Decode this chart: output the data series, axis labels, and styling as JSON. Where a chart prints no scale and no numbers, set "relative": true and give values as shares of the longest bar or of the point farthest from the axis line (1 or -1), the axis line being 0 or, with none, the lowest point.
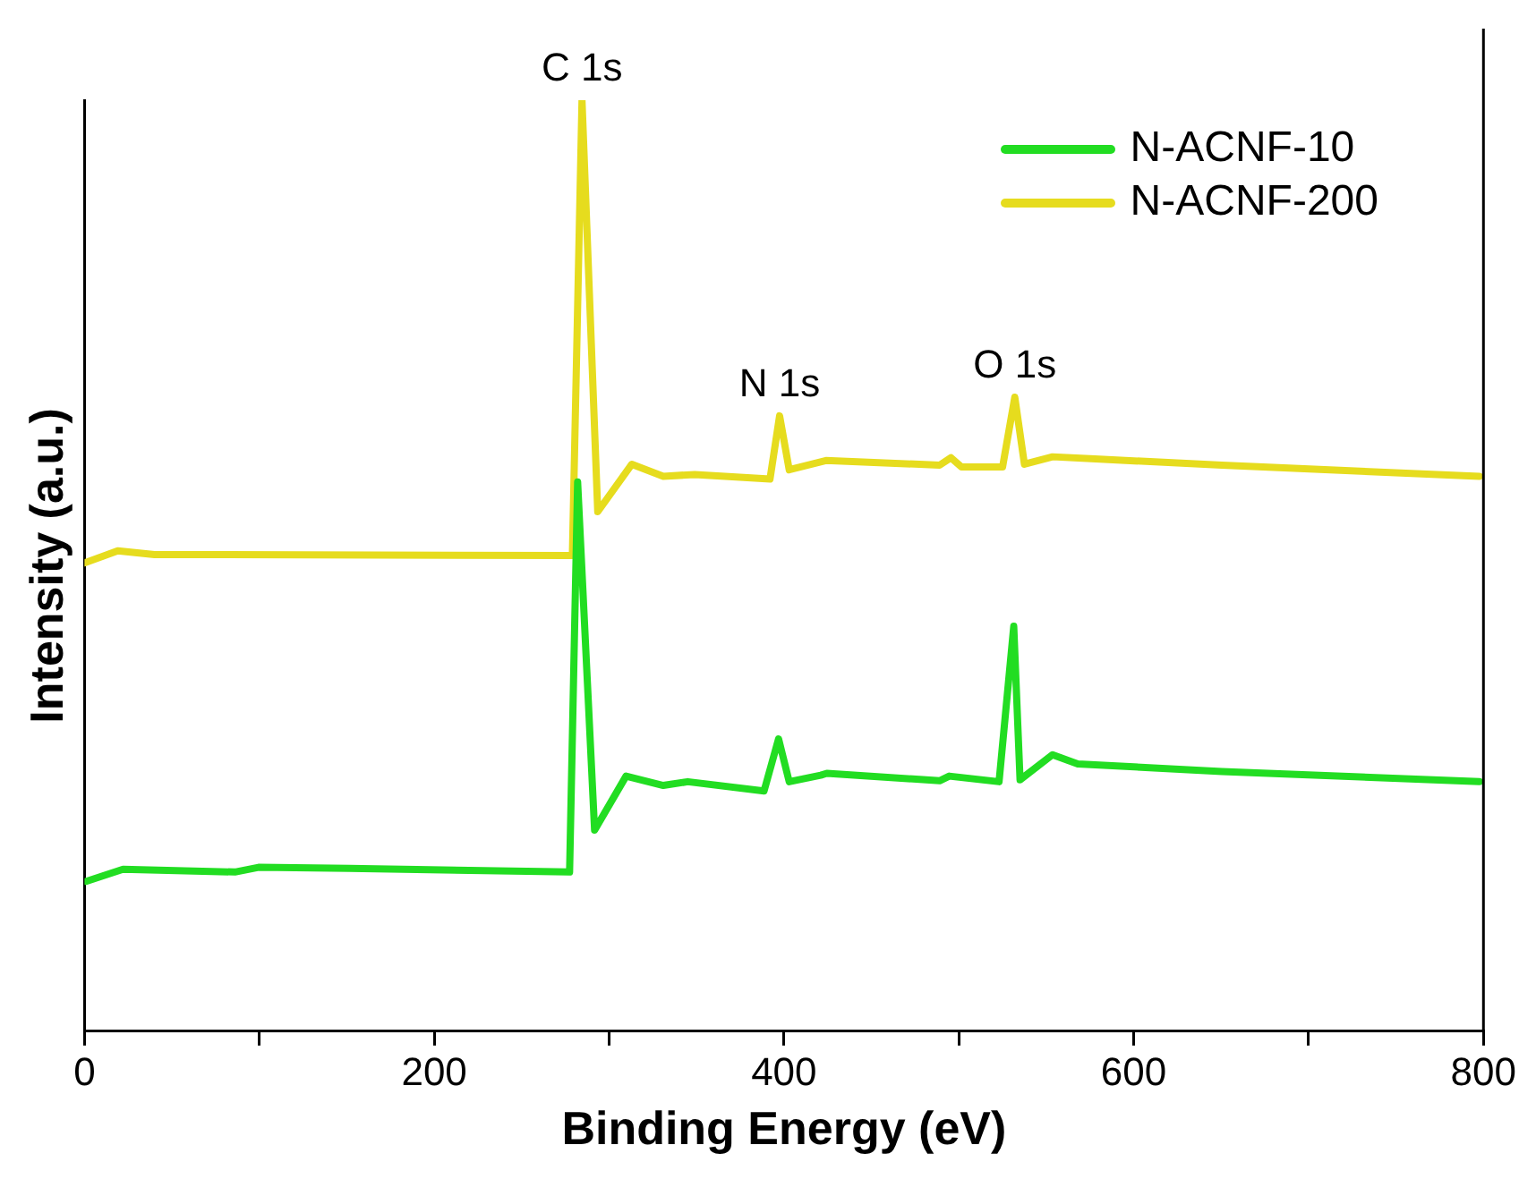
{
  "chart_data": {
    "type": "line",
    "relative": true,
    "xlabel": "Binding Energy (eV)",
    "ylabel": "Intensity (a.u.)",
    "xlim": [
      0,
      800
    ],
    "xticks": [
      0,
      {
        "value": 100,
        "label": null
      },
      200,
      {
        "value": 300,
        "label": null
      },
      400,
      {
        "value": 500,
        "label": null
      },
      600,
      {
        "value": 700,
        "label": null
      },
      800
    ],
    "legend": "top right",
    "grid": false,
    "marker": "none",
    "line_style": "solid",
    "annotations": [
      {
        "text": "C 1s",
        "x": 284.5,
        "y": 1.0
      },
      {
        "text": "N 1s",
        "x": 397.5,
        "y": 0.661
      },
      {
        "text": "O 1s",
        "x": 532,
        "y": 0.681
      }
    ],
    "series": [
      {
        "name": "N-ACNF-10",
        "color": "#22dd22",
        "x": [
          1,
          22,
          86,
          99.5,
          151.5,
          277.4,
          282,
          291.7,
          309.7,
          331,
          345,
          388.6,
          396.9,
          403,
          421,
          424.5,
          489,
          494.5,
          523,
          531.4,
          535,
          553.6,
          568,
          650.5,
          797.6
        ],
        "values": [
          0.161,
          0.174,
          0.171,
          0.176,
          0.175,
          0.171,
          0.59,
          0.216,
          0.274,
          0.264,
          0.268,
          0.258,
          0.314,
          0.268,
          0.275,
          0.277,
          0.269,
          0.274,
          0.268,
          0.435,
          0.27,
          0.297,
          0.287,
          0.279,
          0.268
        ]
      },
      {
        "name": "N-ACNF-200",
        "color": "#e6dc1e",
        "x": [
          0,
          19,
          40,
          279,
          284.5,
          293.5,
          313,
          331,
          349,
          392,
          397.5,
          403,
          424,
          489,
          495.5,
          501.5,
          525,
          532,
          537.5,
          553.6,
          650.5,
          797.6
        ],
        "values": [
          0.503,
          0.516,
          0.512,
          0.511,
          1.0,
          0.558,
          0.609,
          0.596,
          0.598,
          0.593,
          0.661,
          0.603,
          0.613,
          0.608,
          0.616,
          0.606,
          0.606,
          0.681,
          0.609,
          0.617,
          0.608,
          0.596
        ]
      }
    ]
  }
}
